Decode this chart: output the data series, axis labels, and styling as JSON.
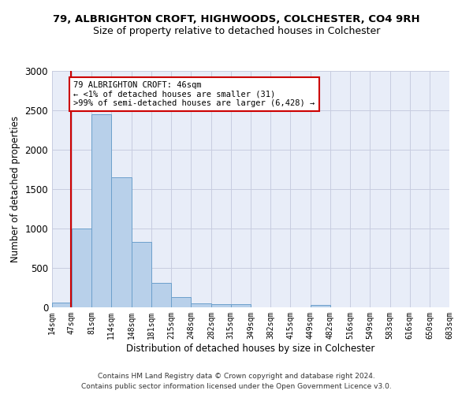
{
  "title1": "79, ALBRIGHTON CROFT, HIGHWOODS, COLCHESTER, CO4 9RH",
  "title2": "Size of property relative to detached houses in Colchester",
  "xlabel": "Distribution of detached houses by size in Colchester",
  "ylabel": "Number of detached properties",
  "footer1": "Contains HM Land Registry data © Crown copyright and database right 2024.",
  "footer2": "Contains public sector information licensed under the Open Government Licence v3.0.",
  "annotation_title": "79 ALBRIGHTON CROFT: 46sqm",
  "annotation_line1": "← <1% of detached houses are smaller (31)",
  "annotation_line2": ">99% of semi-detached houses are larger (6,428) →",
  "property_size": 46,
  "bin_edges": [
    14,
    47,
    81,
    114,
    148,
    181,
    215,
    248,
    282,
    315,
    349,
    382,
    415,
    449,
    482,
    516,
    549,
    583,
    616,
    650,
    683
  ],
  "bar_values": [
    60,
    1000,
    2450,
    1650,
    830,
    310,
    130,
    50,
    40,
    40,
    0,
    0,
    0,
    30,
    0,
    0,
    0,
    0,
    0,
    0
  ],
  "bar_color": "#b8d0ea",
  "bar_edge_color": "#6ca0cc",
  "grid_color": "#c8cce0",
  "bg_color": "#e8edf8",
  "annotation_box_color": "#cc0000",
  "vline_color": "#cc0000",
  "ylim": [
    0,
    3000
  ],
  "yticks": [
    0,
    500,
    1000,
    1500,
    2000,
    2500,
    3000
  ],
  "title1_fontsize": 9.5,
  "title2_fontsize": 9.0,
  "footer_fontsize": 6.5,
  "ylabel_fontsize": 8.5,
  "xlabel_fontsize": 8.5,
  "annotation_fontsize": 7.5,
  "xtick_fontsize": 7.0,
  "ytick_fontsize": 8.5
}
